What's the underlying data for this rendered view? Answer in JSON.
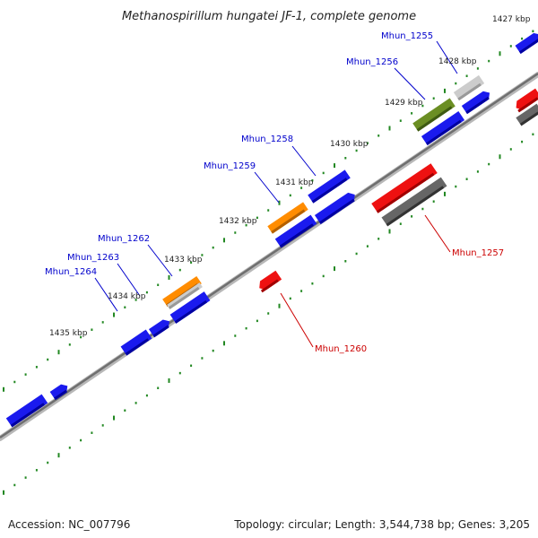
{
  "title": "Methanospirillum hungatei JF-1, complete genome",
  "footer": {
    "accession": "Accession: NC_007796",
    "summary": "Topology: circular; Length: 3,544,738 bp; Genes: 3,205"
  },
  "colors": {
    "plus_strand": "#0000ee",
    "minus_strand": "#ee0000",
    "ticks": "#228822",
    "backbone": "#808080"
  },
  "kbp_labels": [
    "1427 kbp",
    "1428 kbp",
    "1429 kbp",
    "1430 kbp",
    "1431 kbp",
    "1432 kbp",
    "1433 kbp",
    "1434 kbp",
    "1435 kbp"
  ],
  "gene_labels": {
    "plus": [
      "Mhun_1255",
      "Mhun_1256",
      "Mhun_1258",
      "Mhun_1259",
      "Mhun_1262",
      "Mhun_1263",
      "Mhun_1264"
    ],
    "minus": [
      "Mhun_1257",
      "Mhun_1260"
    ]
  }
}
